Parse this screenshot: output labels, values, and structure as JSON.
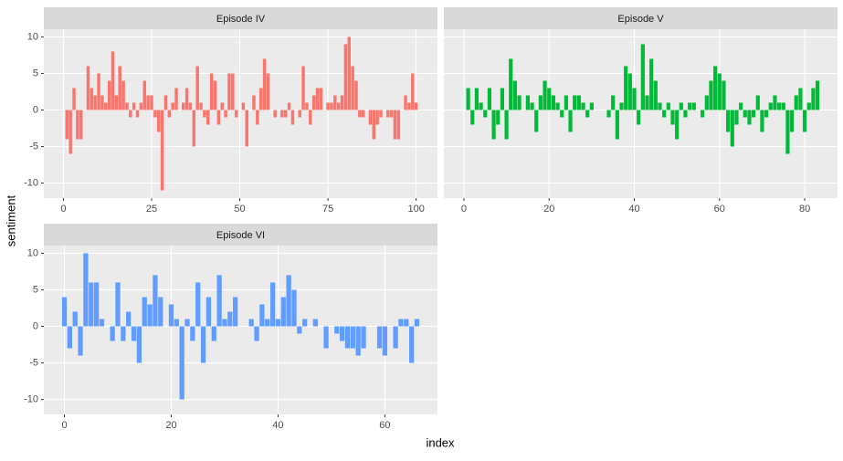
{
  "axis_labels": {
    "x": "index",
    "y": "sentiment"
  },
  "chart_data": [
    {
      "type": "bar",
      "title": "Episode IV",
      "color": "#F8766D",
      "x": [
        0,
        1,
        2,
        3,
        4,
        5,
        6,
        7,
        8,
        9,
        10,
        11,
        12,
        13,
        14,
        15,
        16,
        17,
        18,
        19,
        20,
        21,
        22,
        23,
        24,
        25,
        26,
        27,
        28,
        29,
        30,
        31,
        32,
        33,
        34,
        35,
        36,
        37,
        38,
        39,
        40,
        41,
        42,
        43,
        44,
        45,
        46,
        47,
        48,
        49,
        50,
        51,
        52,
        53,
        54,
        55,
        56,
        57,
        58,
        59,
        60,
        61,
        62,
        63,
        64,
        65,
        66,
        67,
        68,
        69,
        70,
        71,
        72,
        73,
        74,
        75,
        76,
        77,
        78,
        79,
        80,
        81,
        82,
        83,
        84,
        85,
        86,
        87,
        88,
        89,
        90,
        91,
        92,
        93,
        94,
        95,
        96,
        97,
        98,
        99,
        100
      ],
      "values": [
        0,
        -4,
        -6,
        3,
        -4,
        -4,
        0,
        6,
        3,
        2,
        5,
        2,
        1,
        4,
        8,
        2,
        6,
        4,
        1,
        -1,
        1,
        -1,
        1,
        4,
        2,
        2,
        -1,
        -3,
        -11,
        2,
        -1,
        1,
        3,
        0,
        1,
        3,
        1,
        -5,
        6,
        1,
        -1,
        -2,
        5,
        4,
        -2,
        1,
        -1,
        5,
        5,
        -1,
        0,
        1,
        -5,
        0,
        2,
        -2,
        3,
        7,
        5,
        0,
        -1,
        0,
        -1,
        -1,
        1,
        -2,
        0,
        -1,
        6,
        1,
        -2,
        2,
        3,
        3,
        0,
        1,
        1,
        2,
        1,
        2,
        9,
        10,
        6,
        4,
        -1,
        -1,
        0,
        -2,
        -4,
        -2,
        -1,
        0,
        -1,
        -1,
        -4,
        -4,
        0,
        2,
        1,
        5,
        1
      ],
      "xlim": [
        -5.55,
        106.05
      ],
      "ylim": [
        -12.05,
        11.05
      ],
      "xticks": [
        0,
        25,
        50,
        75,
        100
      ],
      "yticks": [
        -10,
        -5,
        0,
        5,
        10
      ],
      "grid": true
    },
    {
      "type": "bar",
      "title": "Episode V",
      "color": "#00BA38",
      "x": [
        0,
        1,
        2,
        3,
        4,
        5,
        6,
        7,
        8,
        9,
        10,
        11,
        12,
        13,
        14,
        15,
        16,
        17,
        18,
        19,
        20,
        21,
        22,
        23,
        24,
        25,
        26,
        27,
        28,
        29,
        30,
        31,
        32,
        33,
        34,
        35,
        36,
        37,
        38,
        39,
        40,
        41,
        42,
        43,
        44,
        45,
        46,
        47,
        48,
        49,
        50,
        51,
        52,
        53,
        54,
        55,
        56,
        57,
        58,
        59,
        60,
        61,
        62,
        63,
        64,
        65,
        66,
        67,
        68,
        69,
        70,
        71,
        72,
        73,
        74,
        75,
        76,
        77,
        78,
        79,
        80,
        81,
        82,
        83
      ],
      "values": [
        0,
        3,
        -2,
        3,
        1,
        -1,
        3,
        -4,
        -2,
        3,
        -4,
        7,
        4,
        2,
        0,
        2,
        1,
        -3,
        2,
        4,
        3,
        2,
        1,
        -1,
        2,
        -3,
        2,
        2,
        1,
        -1,
        1,
        0,
        0,
        0,
        -1,
        2,
        -4,
        1,
        6,
        5,
        3,
        -2,
        9,
        2,
        7,
        4,
        1,
        -1,
        1,
        -2,
        -4,
        1,
        -1,
        1,
        1,
        0,
        -1,
        2,
        4,
        6,
        5,
        4,
        -3,
        -5,
        -2,
        1,
        -1,
        -2,
        -1,
        2,
        -3,
        -1,
        1,
        2,
        1,
        1,
        -6,
        -3,
        2,
        3,
        -3,
        1,
        3,
        4
      ],
      "xlim": [
        -4.7,
        87.7
      ],
      "ylim": [
        -12.05,
        11.05
      ],
      "xticks": [
        0,
        20,
        40,
        60,
        80
      ],
      "yticks": [
        -10,
        -5,
        0,
        5,
        10
      ],
      "grid": true
    },
    {
      "type": "bar",
      "title": "Episode VI",
      "color": "#619CFF",
      "x": [
        0,
        1,
        2,
        3,
        4,
        5,
        6,
        7,
        8,
        9,
        10,
        11,
        12,
        13,
        14,
        15,
        16,
        17,
        18,
        19,
        20,
        21,
        22,
        23,
        24,
        25,
        26,
        27,
        28,
        29,
        30,
        31,
        32,
        33,
        34,
        35,
        36,
        37,
        38,
        39,
        40,
        41,
        42,
        43,
        44,
        45,
        46,
        47,
        48,
        49,
        50,
        51,
        52,
        53,
        54,
        55,
        56,
        57,
        58,
        59,
        60,
        61,
        62,
        63,
        64,
        65,
        66
      ],
      "values": [
        4,
        -3,
        2,
        -4,
        10,
        6,
        6,
        1,
        0,
        -2,
        6,
        -2,
        2,
        -2,
        -5,
        4,
        3,
        7,
        4,
        0,
        3,
        1,
        -10,
        1,
        -2,
        6,
        -5,
        4,
        -2,
        7,
        1,
        2,
        4,
        0,
        0,
        1,
        -2,
        3,
        1,
        6,
        1,
        4,
        7,
        5,
        -1,
        1,
        0,
        1,
        0,
        -3,
        0,
        -1,
        -2,
        -3,
        -3,
        -4,
        -3,
        0,
        0,
        -3,
        -4,
        0,
        -3,
        1,
        1,
        -5,
        1
      ],
      "xlim": [
        -3.85,
        69.85
      ],
      "ylim": [
        -12.05,
        11.05
      ],
      "xticks": [
        0,
        20,
        40,
        60
      ],
      "yticks": [
        -10,
        -5,
        0,
        5,
        10
      ],
      "grid": true
    }
  ]
}
